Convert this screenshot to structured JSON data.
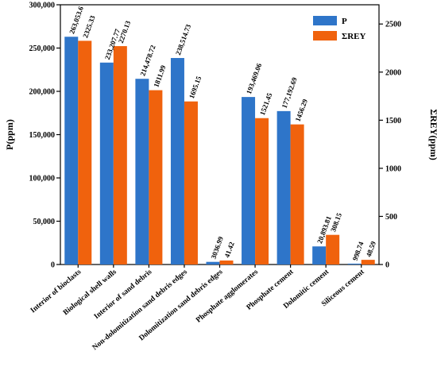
{
  "chart_data": {
    "type": "bar",
    "categories": [
      "Interior of bioclasts",
      "Biological shell walls",
      "Interior of sand debris",
      "Non-dolomitization sand debris edges",
      "Dolomitization sand debris edges",
      "Phosphate agglomerates",
      "Phosphate cement",
      "Dolomitic cement",
      "Siliceous cement"
    ],
    "series": [
      {
        "name": "P",
        "axis": "left",
        "color": "#2e75c9",
        "values": [
          263053.6,
          233207.77,
          214478.72,
          238514.73,
          3036.99,
          193469.06,
          177192.69,
          20893.81,
          998.74
        ],
        "labels": [
          "263,053.6",
          "233,207.77",
          "214,478.72",
          "238,514.73",
          "3036.99",
          "193,469.06",
          "177,192.69",
          "20,893.81",
          "998.74"
        ]
      },
      {
        "name": "ΣREY",
        "axis": "right",
        "color": "#f0620d",
        "values": [
          2325.33,
          2270.13,
          1811.99,
          1695.15,
          41.42,
          1521.45,
          1456.29,
          308.15,
          48.59
        ],
        "labels": [
          "2325.33",
          "2270.13",
          "1811.99",
          "1695.15",
          "41.42",
          "1521.45",
          "1456.29",
          "308.15",
          "48.59"
        ]
      }
    ],
    "ylabel": "P(ppm)",
    "y2label": "ΣREY(ppm)",
    "ylim": [
      0,
      300000
    ],
    "y2lim": [
      0,
      2700
    ],
    "yticks": [
      0,
      50000,
      100000,
      150000,
      200000,
      250000,
      300000
    ],
    "ytick_labels": [
      "0",
      "50,000",
      "100,000",
      "150,000",
      "200,000",
      "250,000",
      "300,000"
    ],
    "y2ticks": [
      0,
      500,
      1000,
      1500,
      2000,
      2500
    ],
    "y2tick_labels": [
      "0",
      "500",
      "1000",
      "1500",
      "2000",
      "2500"
    ],
    "legend_position": "top-right",
    "grid": false
  }
}
